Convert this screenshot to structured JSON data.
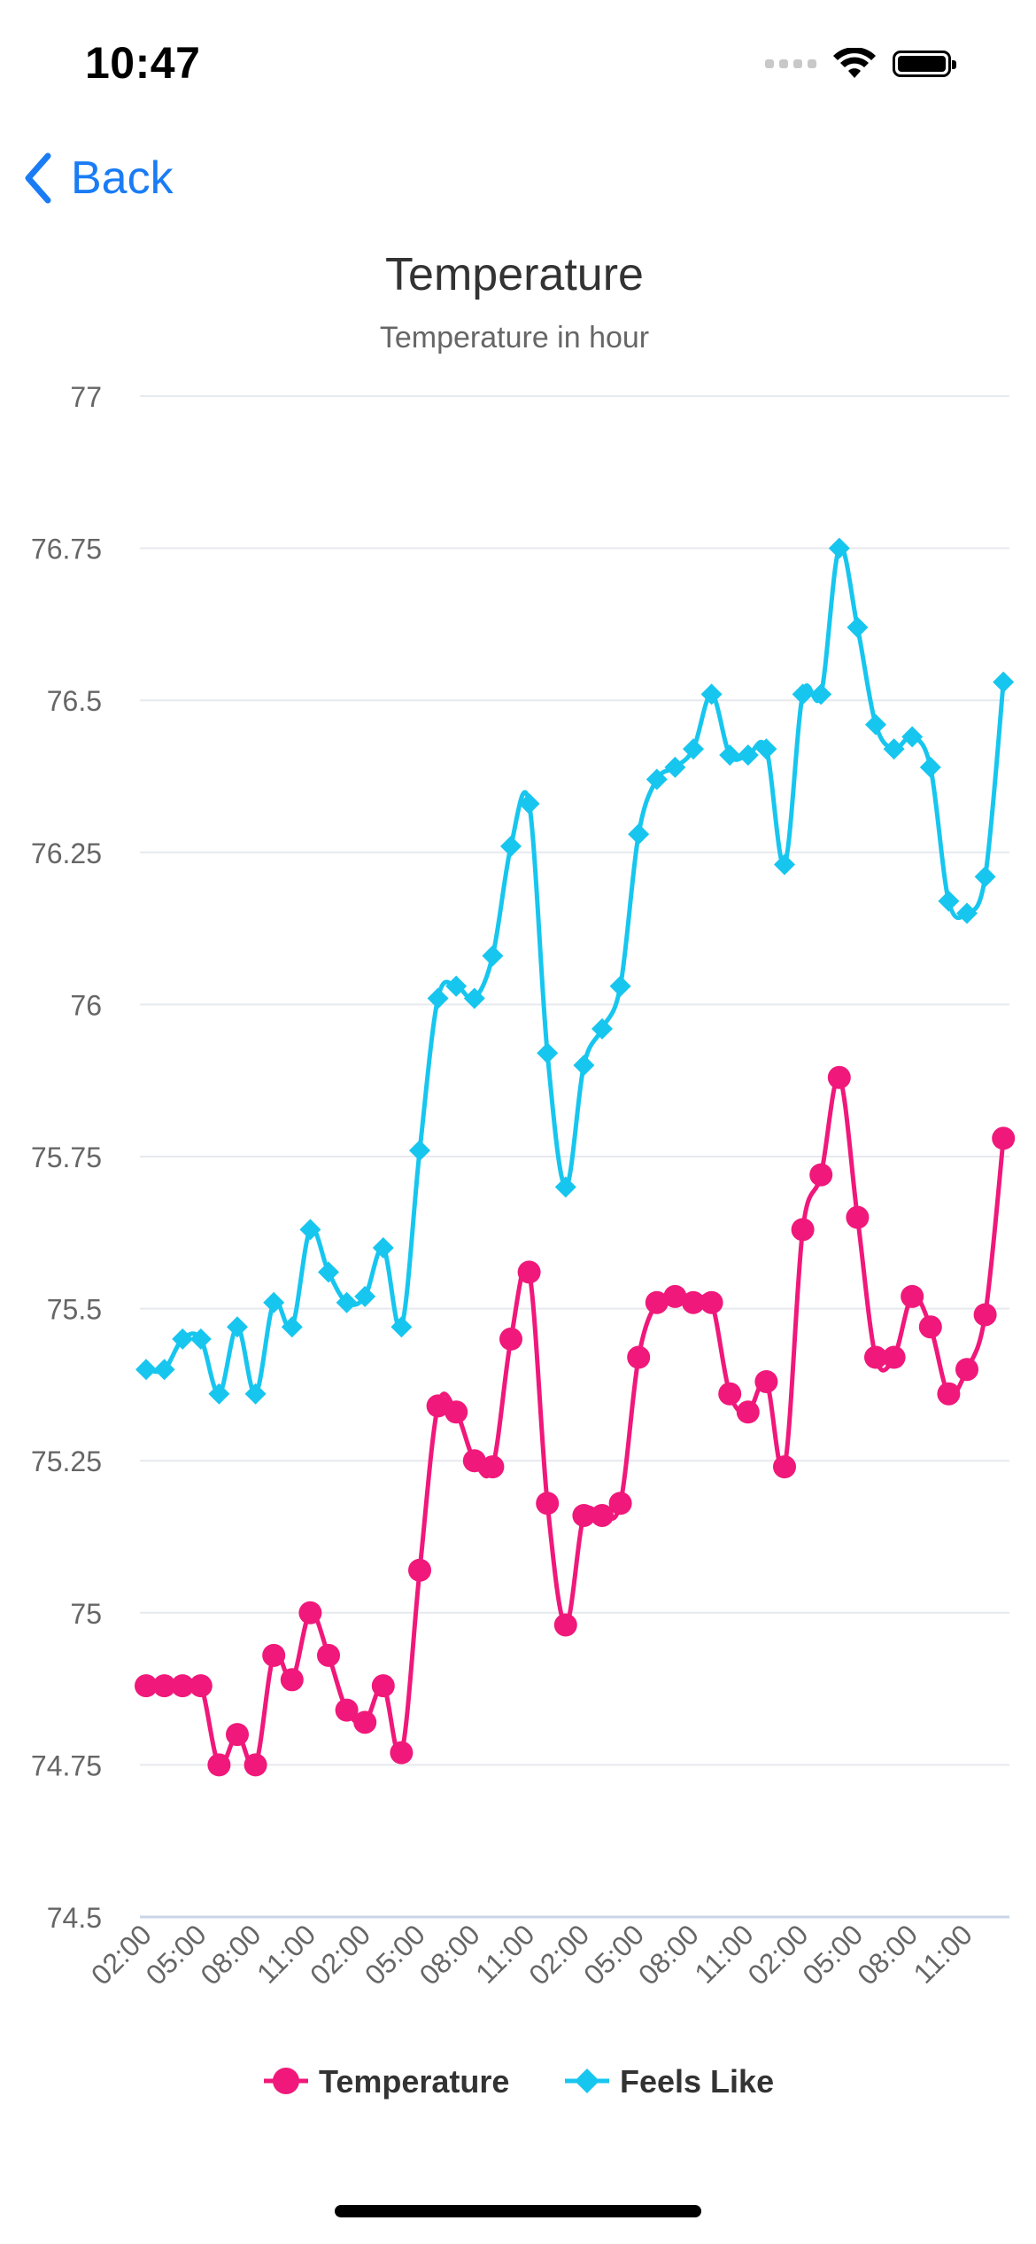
{
  "status_bar": {
    "time": "10:47"
  },
  "nav": {
    "back_label": "Back"
  },
  "colors": {
    "accent": "#1a7cf5",
    "temperature": "#f0187a",
    "feels_like": "#17c6ef",
    "grid": "#e6e9ee",
    "axis": "#c9d6e8"
  },
  "icons": [
    "chevron-left-icon",
    "signal-icon",
    "wifi-icon",
    "battery-icon",
    "circle-marker-icon",
    "diamond-marker-icon"
  ],
  "chart_data": {
    "type": "line",
    "title": "Temperature",
    "subtitle": "Temperature in hour",
    "xlabel": "",
    "ylabel": "",
    "ylim": [
      74.5,
      77
    ],
    "yticks": [
      74.5,
      74.75,
      75,
      75.25,
      75.5,
      75.75,
      76,
      76.25,
      76.5,
      76.75,
      77
    ],
    "x_tick_labels": [
      "02:00",
      "05:00",
      "08:00",
      "11:00",
      "02:00",
      "05:00",
      "08:00",
      "11:00",
      "02:00",
      "05:00",
      "08:00",
      "11:00",
      "02:00",
      "05:00",
      "08:00",
      "11:00"
    ],
    "points_per_tick": 3,
    "grid": true,
    "legend_position": "bottom",
    "series": [
      {
        "name": "Temperature",
        "marker": "circle",
        "color": "#f0187a",
        "values": [
          74.88,
          74.88,
          74.88,
          74.88,
          74.75,
          74.8,
          74.75,
          74.93,
          74.89,
          75.0,
          74.93,
          74.84,
          74.82,
          74.88,
          74.77,
          75.07,
          75.34,
          75.33,
          75.25,
          75.24,
          75.45,
          75.56,
          75.18,
          74.98,
          75.16,
          75.16,
          75.18,
          75.42,
          75.51,
          75.52,
          75.51,
          75.51,
          75.36,
          75.33,
          75.38,
          75.24,
          75.63,
          75.72,
          75.88,
          75.65,
          75.42,
          75.42,
          75.52,
          75.47,
          75.36,
          75.4,
          75.49,
          75.78
        ]
      },
      {
        "name": "Feels Like",
        "marker": "diamond",
        "color": "#17c6ef",
        "values": [
          75.4,
          75.4,
          75.45,
          75.45,
          75.36,
          75.47,
          75.36,
          75.51,
          75.47,
          75.63,
          75.56,
          75.51,
          75.52,
          75.6,
          75.47,
          75.76,
          76.01,
          76.03,
          76.01,
          76.08,
          76.26,
          76.33,
          75.92,
          75.7,
          75.9,
          75.96,
          76.03,
          76.28,
          76.37,
          76.39,
          76.42,
          76.51,
          76.41,
          76.41,
          76.42,
          76.23,
          76.51,
          76.51,
          76.75,
          76.62,
          76.46,
          76.42,
          76.44,
          76.39,
          76.17,
          76.15,
          76.21,
          76.53
        ]
      }
    ]
  }
}
